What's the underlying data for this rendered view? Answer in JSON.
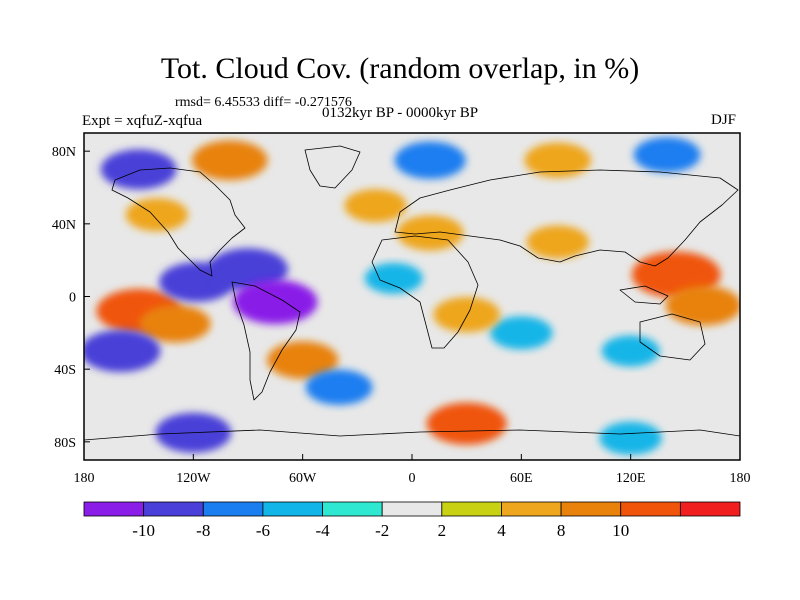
{
  "title": "Tot. Cloud Cov. (random overlap, in %)",
  "stats": "rmsd= 6.45533 diff= -0.271576",
  "experiment": "Expt = xqfuZ-xqfua",
  "period": "0132kyr BP - 0000kyr BP",
  "season": "DJF",
  "colors": {
    "background": "#ffffff",
    "neutral": "#e8e8e8",
    "coastline": "#000000",
    "bins": [
      "#8a1ee8",
      "#4a3fd8",
      "#1a7ef0",
      "#12b5e8",
      "#2ee8d2",
      "#e8e8e8",
      "#c8d212",
      "#eea61e",
      "#e8820a",
      "#f0540a",
      "#f01e1e"
    ]
  },
  "chart_data": {
    "type": "heatmap",
    "projection": "cylindrical equidistant",
    "xlim": [
      -180,
      180
    ],
    "ylim": [
      -90,
      90
    ],
    "x_ticks": [
      "180",
      "120W",
      "60W",
      "0",
      "60E",
      "120E",
      "180"
    ],
    "y_ticks": [
      "80N",
      "40N",
      "0",
      "40S",
      "80S"
    ],
    "colorbar": {
      "levels": [
        -10,
        -8,
        -6,
        -4,
        -2,
        2,
        4,
        8,
        10
      ],
      "labels": [
        "-10",
        "-8",
        "-6",
        "-4",
        "-2",
        "2",
        "4",
        "8",
        "10"
      ],
      "placement": "bottom"
    },
    "anomaly_regions": [
      {
        "lon": 145,
        "lat": 12,
        "value": 12
      },
      {
        "lon": 160,
        "lat": -5,
        "value": 9
      },
      {
        "lon": -150,
        "lat": -8,
        "value": 11
      },
      {
        "lon": -130,
        "lat": -15,
        "value": 8
      },
      {
        "lon": -118,
        "lat": 8,
        "value": -9
      },
      {
        "lon": -90,
        "lat": 15,
        "value": -10
      },
      {
        "lon": -75,
        "lat": -3,
        "value": -11
      },
      {
        "lon": -160,
        "lat": -30,
        "value": -10
      },
      {
        "lon": -140,
        "lat": 45,
        "value": 6
      },
      {
        "lon": -20,
        "lat": 50,
        "value": 6
      },
      {
        "lon": 10,
        "lat": 35,
        "value": 7
      },
      {
        "lon": 80,
        "lat": 30,
        "value": 6
      },
      {
        "lon": -10,
        "lat": 10,
        "value": -5
      },
      {
        "lon": 60,
        "lat": -20,
        "value": -6
      },
      {
        "lon": 30,
        "lat": -10,
        "value": 7
      },
      {
        "lon": 120,
        "lat": -30,
        "value": -5
      },
      {
        "lon": -60,
        "lat": -35,
        "value": 8
      },
      {
        "lon": -40,
        "lat": -50,
        "value": -7
      },
      {
        "lon": -150,
        "lat": 70,
        "value": -9
      },
      {
        "lon": -100,
        "lat": 75,
        "value": 9
      },
      {
        "lon": 10,
        "lat": 75,
        "value": -8
      },
      {
        "lon": 80,
        "lat": 75,
        "value": 7
      },
      {
        "lon": 140,
        "lat": 78,
        "value": -7
      },
      {
        "lon": -120,
        "lat": -75,
        "value": -9
      },
      {
        "lon": 30,
        "lat": -70,
        "value": 10
      },
      {
        "lon": 120,
        "lat": -78,
        "value": -6
      }
    ]
  }
}
